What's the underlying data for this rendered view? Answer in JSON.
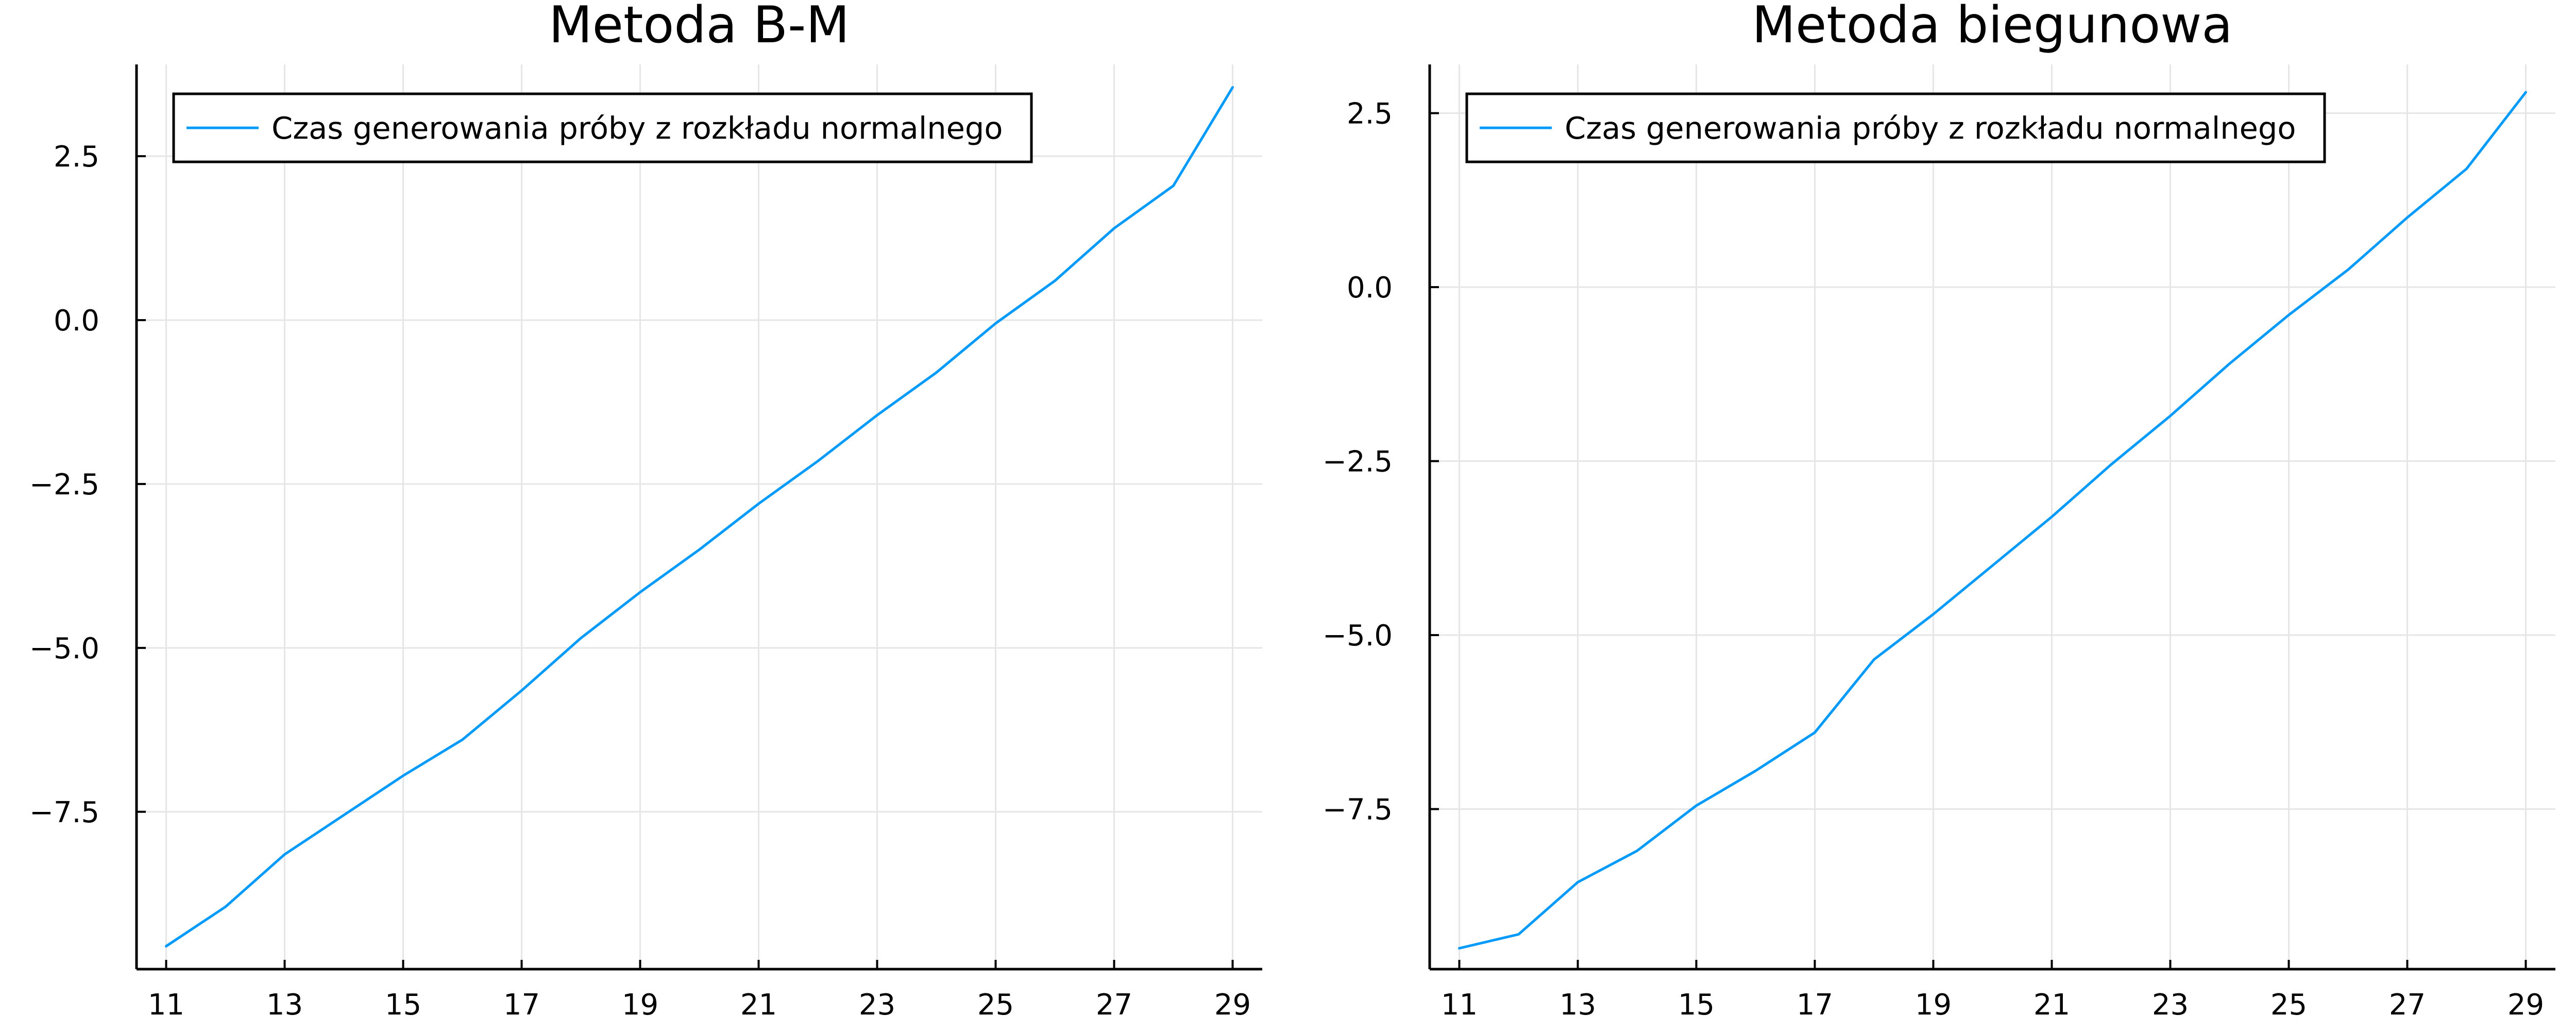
{
  "chart_data": [
    {
      "type": "line",
      "title": "Metoda B-M",
      "xlabel": "",
      "ylabel": "",
      "xlim": [
        10.5,
        29.5
      ],
      "ylim": [
        -9.9,
        3.9
      ],
      "xticks": [
        11,
        13,
        15,
        17,
        19,
        21,
        23,
        25,
        27,
        29
      ],
      "yticks": [
        2.5,
        0.0,
        -2.5,
        -5.0,
        -7.5
      ],
      "ytick_labels": [
        "2.5",
        "0.0",
        "−2.5",
        "−5.0",
        "−7.5"
      ],
      "grid": true,
      "legend_position": "top-left",
      "series": [
        {
          "name": "Czas generowania próby z rozkładu normalnego",
          "color": "#009AFA",
          "x": [
            11,
            12,
            13,
            14,
            15,
            16,
            17,
            18,
            19,
            20,
            21,
            22,
            23,
            24,
            25,
            26,
            27,
            28,
            29
          ],
          "values": [
            -9.55,
            -8.95,
            -8.15,
            -7.55,
            -6.95,
            -6.4,
            -5.65,
            -4.85,
            -4.15,
            -3.5,
            -2.8,
            -2.15,
            -1.45,
            -0.8,
            -0.05,
            0.6,
            1.4,
            2.05,
            3.55
          ]
        }
      ]
    },
    {
      "type": "line",
      "title": "Metoda biegunowa",
      "xlabel": "",
      "ylabel": "",
      "xlim": [
        10.5,
        29.5
      ],
      "ylim": [
        -9.8,
        3.2
      ],
      "xticks": [
        11,
        13,
        15,
        17,
        19,
        21,
        23,
        25,
        27,
        29
      ],
      "yticks": [
        2.5,
        0.0,
        -2.5,
        -5.0,
        -7.5
      ],
      "ytick_labels": [
        "2.5",
        "0.0",
        "−2.5",
        "−5.0",
        "−7.5"
      ],
      "grid": true,
      "legend_position": "top-left",
      "series": [
        {
          "name": "Czas generowania próby z rozkładu normalnego",
          "color": "#009AFA",
          "x": [
            11,
            12,
            13,
            14,
            15,
            16,
            17,
            18,
            19,
            20,
            21,
            22,
            23,
            24,
            25,
            26,
            27,
            28,
            29
          ],
          "values": [
            -9.5,
            -9.3,
            -8.55,
            -8.1,
            -7.45,
            -6.95,
            -6.4,
            -5.35,
            -4.7,
            -4.0,
            -3.3,
            -2.55,
            -1.85,
            -1.1,
            -0.4,
            0.25,
            1.0,
            1.7,
            2.8
          ]
        }
      ]
    }
  ]
}
